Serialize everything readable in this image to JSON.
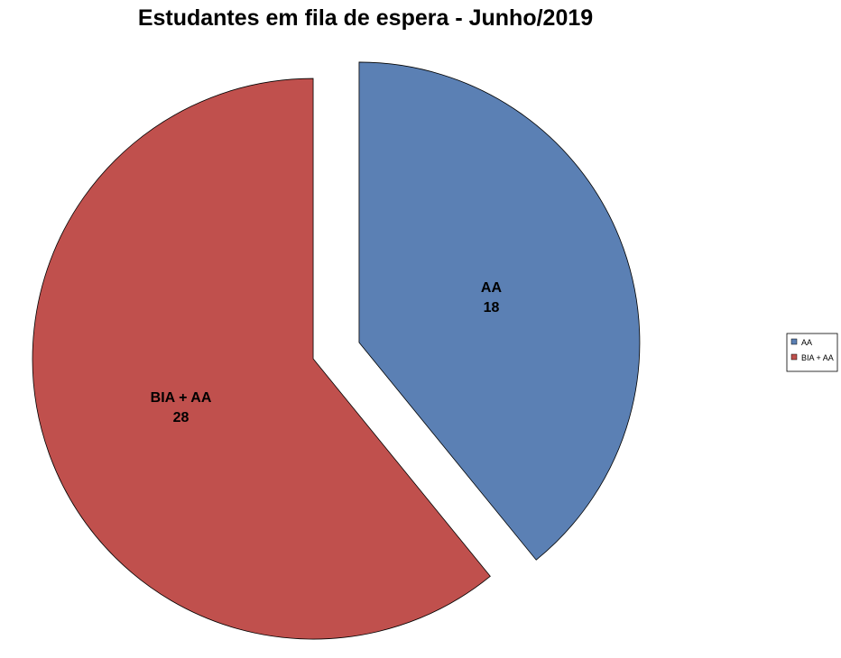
{
  "chart_data": {
    "type": "pie",
    "title": "Estudantes em fila de espera - Junho/2019",
    "categories": [
      "AA",
      "BIA + AA"
    ],
    "values": [
      18,
      28
    ],
    "colors": [
      "#5b80b4",
      "#c0504d"
    ],
    "exploded": true,
    "legend": "right"
  }
}
